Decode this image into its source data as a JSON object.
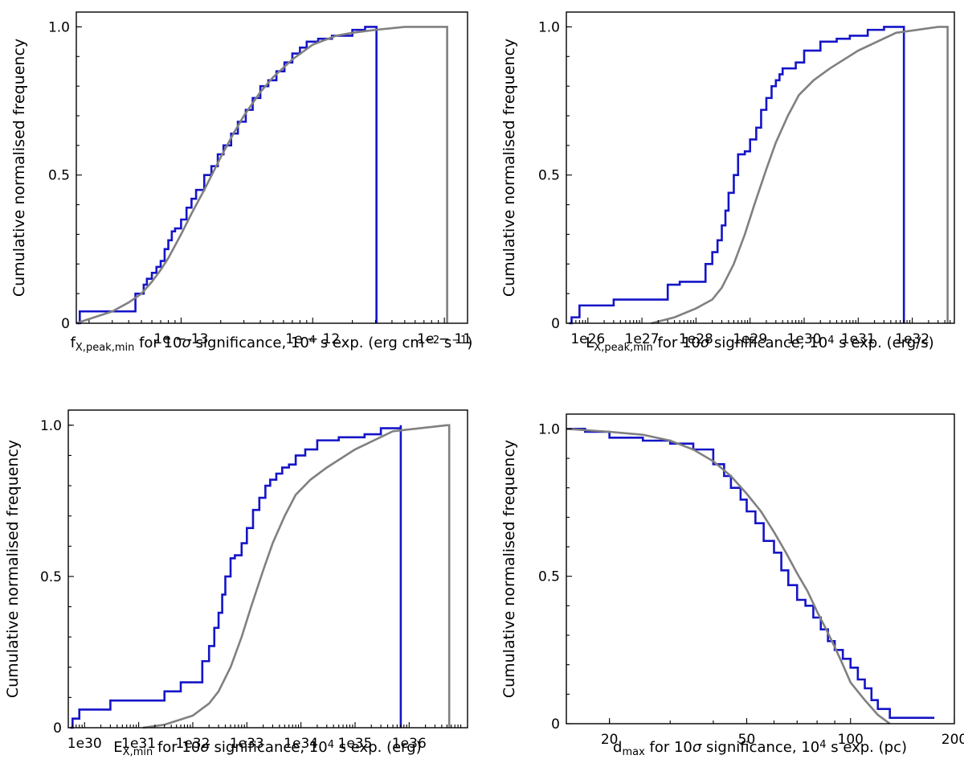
{
  "chart_data": [
    {
      "type": "line",
      "xscale": "log",
      "xlim": [
        1.6e-14,
        1.5e-11
      ],
      "ylim": [
        0,
        1.05
      ],
      "ylabel": "Cumulative normalised frequency",
      "xlabel": "f<sub>X,peak,min</sub> for 10<i>σ</i> significance, 10<sup>4</sup> s exp. (erg cm<sup>−2</sup> s<sup>−1</sup>)",
      "xticks": [
        {
          "v": 1e-13,
          "label": "1e − 13"
        },
        {
          "v": 1e-12,
          "label": "1e − 12"
        },
        {
          "v": 1e-11,
          "label": "1e − 11"
        }
      ],
      "yticks": [
        {
          "v": 0,
          "label": "0"
        },
        {
          "v": 0.5,
          "label": "0.5"
        },
        {
          "v": 1.0,
          "label": "1.0"
        }
      ],
      "series": [
        {
          "color": "#1414c8",
          "step": true,
          "x": [
            1.6e-14,
            1.7e-14,
            4.5e-14,
            5.2e-14,
            5.5e-14,
            6e-14,
            6.5e-14,
            7e-14,
            7.5e-14,
            8e-14,
            8.5e-14,
            9e-14,
            1e-13,
            1.1e-13,
            1.2e-13,
            1.3e-13,
            1.5e-13,
            1.7e-13,
            1.9e-13,
            2.1e-13,
            2.4e-13,
            2.7e-13,
            3.1e-13,
            3.5e-13,
            4e-13,
            4.6e-13,
            5.3e-13,
            6.1e-13,
            7e-13,
            8e-13,
            9e-13,
            1.1e-12,
            1.4e-12,
            2e-12,
            2.5e-12,
            3.05e-12,
            3.05e-12
          ],
          "y": [
            0,
            0.04,
            0.1,
            0.13,
            0.15,
            0.17,
            0.19,
            0.21,
            0.25,
            0.28,
            0.31,
            0.32,
            0.35,
            0.39,
            0.42,
            0.45,
            0.5,
            0.53,
            0.57,
            0.6,
            0.64,
            0.68,
            0.72,
            0.76,
            0.8,
            0.82,
            0.85,
            0.88,
            0.91,
            0.93,
            0.95,
            0.96,
            0.97,
            0.99,
            1.0,
            1.0,
            0
          ]
        },
        {
          "color": "#808080",
          "step": false,
          "x": [
            1.6e-14,
            3e-14,
            4e-14,
            5e-14,
            6e-14,
            7e-14,
            8e-14,
            1e-13,
            1.2e-13,
            1.5e-13,
            2e-13,
            2.5e-13,
            3e-13,
            4e-13,
            5e-13,
            7e-13,
            1e-12,
            1.5e-12,
            2e-12,
            3e-12,
            5e-12,
            1.05e-11,
            1.05e-11
          ],
          "y": [
            0,
            0.04,
            0.07,
            0.1,
            0.14,
            0.18,
            0.22,
            0.3,
            0.37,
            0.45,
            0.56,
            0.64,
            0.7,
            0.78,
            0.83,
            0.89,
            0.94,
            0.97,
            0.98,
            0.99,
            1.0,
            1.0,
            0
          ]
        }
      ]
    },
    {
      "type": "line",
      "xscale": "log",
      "xlim": [
        4e+25,
        6e+32
      ],
      "ylim": [
        0,
        1.05
      ],
      "ylabel": "Cumulative normalised frequency",
      "xlabel": "L<sub>X,peak,min</sub> for 10<i>σ</i> significance, 10<sup>4</sup> s exp. (erg/s)",
      "xticks": [
        {
          "v": 1e+26,
          "label": "1e26"
        },
        {
          "v": 1e+27,
          "label": "1e27"
        },
        {
          "v": 1e+28,
          "label": "1e28"
        },
        {
          "v": 1e+29,
          "label": "1e29"
        },
        {
          "v": 1e+30,
          "label": "1e30"
        },
        {
          "v": 1e+31,
          "label": "1e31"
        },
        {
          "v": 1e+32,
          "label": "1e32"
        }
      ],
      "yticks": [
        {
          "v": 0,
          "label": "0"
        },
        {
          "v": 0.5,
          "label": "0.5"
        },
        {
          "v": 1.0,
          "label": "1.0"
        }
      ],
      "series": [
        {
          "color": "#1414c8",
          "step": true,
          "x": [
            4.5e+25,
            5e+25,
            7e+25,
            3e+26,
            3e+27,
            5e+27,
            1.5e+28,
            2e+28,
            2.5e+28,
            3e+28,
            3.5e+28,
            4e+28,
            5e+28,
            6e+28,
            8e+28,
            1e+29,
            1.3e+29,
            1.6e+29,
            2e+29,
            2.5e+29,
            3e+29,
            3.5e+29,
            4e+29,
            5e+29,
            7e+29,
            1e+30,
            2e+30,
            4e+30,
            7e+30,
            1.5e+31,
            3e+31,
            7e+31,
            7e+31
          ],
          "y": [
            0,
            0.02,
            0.06,
            0.08,
            0.13,
            0.14,
            0.2,
            0.24,
            0.28,
            0.33,
            0.38,
            0.44,
            0.5,
            0.57,
            0.58,
            0.62,
            0.66,
            0.72,
            0.76,
            0.8,
            0.82,
            0.84,
            0.86,
            0.86,
            0.88,
            0.92,
            0.95,
            0.96,
            0.97,
            0.99,
            1.0,
            1.0,
            0
          ]
        },
        {
          "color": "#808080",
          "step": false,
          "x": [
            1.5e+27,
            4e+27,
            1e+28,
            2e+28,
            3e+28,
            5e+28,
            8e+28,
            1.2e+29,
            2e+29,
            3e+29,
            5e+29,
            8e+29,
            1.5e+30,
            3e+30,
            1e+31,
            5e+31,
            3e+32,
            4.5e+32,
            4.5e+32
          ],
          "y": [
            0,
            0.02,
            0.05,
            0.08,
            0.12,
            0.2,
            0.3,
            0.4,
            0.52,
            0.61,
            0.7,
            0.77,
            0.82,
            0.86,
            0.92,
            0.98,
            1.0,
            1.0,
            0
          ]
        }
      ]
    },
    {
      "type": "line",
      "xscale": "log",
      "xlim": [
        5e+29,
        1.2e+37
      ],
      "ylim": [
        0,
        1.05
      ],
      "ylabel": "Cumulative normalised frequency",
      "xlabel": "E<sub>X,min</sub> for 10<i>σ</i> significance, 10<sup>4</sup> s exp. (erg)",
      "xticks": [
        {
          "v": 1e+30,
          "label": "1e30"
        },
        {
          "v": 1e+31,
          "label": "1e31"
        },
        {
          "v": 1e+32,
          "label": "1e32"
        },
        {
          "v": 1e+33,
          "label": "1e33"
        },
        {
          "v": 1e+34,
          "label": "1e34"
        },
        {
          "v": 1e+35,
          "label": "1e35"
        },
        {
          "v": 1e+36,
          "label": "1e36"
        }
      ],
      "yticks": [
        {
          "v": 0,
          "label": "0"
        },
        {
          "v": 0.5,
          "label": "0.5"
        },
        {
          "v": 1.0,
          "label": "1.0"
        }
      ],
      "series": [
        {
          "color": "#1414c8",
          "step": true,
          "x": [
            5.5e+29,
            6e+29,
            8e+29,
            3e+30,
            3e+31,
            6e+31,
            1.5e+32,
            2e+32,
            2.5e+32,
            3e+32,
            3.5e+32,
            4e+32,
            5e+32,
            6e+32,
            8e+32,
            1e+33,
            1.3e+33,
            1.7e+33,
            2.2e+33,
            2.7e+33,
            3.5e+33,
            4.5e+33,
            6e+33,
            8e+33,
            1.2e+34,
            2e+34,
            5e+34,
            1.5e+35,
            3e+35,
            7e+35,
            7e+35
          ],
          "y": [
            0,
            0.03,
            0.06,
            0.09,
            0.12,
            0.15,
            0.22,
            0.27,
            0.33,
            0.38,
            0.44,
            0.5,
            0.56,
            0.57,
            0.61,
            0.66,
            0.72,
            0.76,
            0.8,
            0.82,
            0.84,
            0.86,
            0.87,
            0.9,
            0.92,
            0.95,
            0.96,
            0.97,
            0.99,
            1.0,
            0
          ]
        },
        {
          "color": "#808080",
          "step": false,
          "x": [
            1.2e+31,
            3e+31,
            1e+32,
            2e+32,
            3e+32,
            5e+32,
            8e+32,
            1.2e+33,
            2e+33,
            3e+33,
            5e+33,
            8e+33,
            1.5e+34,
            3e+34,
            1e+35,
            5e+35,
            5e+36,
            5.5e+36,
            5.5e+36
          ],
          "y": [
            0,
            0.01,
            0.04,
            0.08,
            0.12,
            0.2,
            0.3,
            0.4,
            0.52,
            0.61,
            0.7,
            0.77,
            0.82,
            0.86,
            0.92,
            0.98,
            1.0,
            1.0,
            0
          ]
        }
      ]
    },
    {
      "type": "line",
      "xscale": "log",
      "xlim": [
        15,
        200
      ],
      "ylim": [
        0,
        1.05
      ],
      "ylabel": "Cumulative normalised frequency",
      "xlabel": "d<sub>max</sub> for 10<i>σ</i> significance, 10<sup>4</sup> s exp. (pc)",
      "xticks": [
        {
          "v": 20,
          "label": "20"
        },
        {
          "v": 50,
          "label": "50"
        },
        {
          "v": 100,
          "label": "100"
        },
        {
          "v": 200,
          "label": "200"
        }
      ],
      "yticks": [
        {
          "v": 0,
          "label": "0"
        },
        {
          "v": 0.5,
          "label": "0.5"
        },
        {
          "v": 1.0,
          "label": "1.0"
        }
      ],
      "series": [
        {
          "color": "#1414c8",
          "step": true,
          "x": [
            15,
            17,
            20,
            25,
            30,
            35,
            40,
            43,
            45,
            48,
            50,
            53,
            56,
            60,
            63,
            66,
            70,
            74,
            78,
            82,
            86,
            90,
            95,
            100,
            105,
            110,
            115,
            120,
            130,
            175
          ],
          "y": [
            1.0,
            0.99,
            0.97,
            0.96,
            0.95,
            0.93,
            0.88,
            0.84,
            0.8,
            0.76,
            0.72,
            0.68,
            0.62,
            0.58,
            0.52,
            0.47,
            0.42,
            0.4,
            0.36,
            0.32,
            0.28,
            0.25,
            0.22,
            0.19,
            0.15,
            0.12,
            0.08,
            0.05,
            0.02,
            0.02
          ]
        },
        {
          "color": "#808080",
          "step": false,
          "x": [
            15,
            20,
            25,
            30,
            35,
            40,
            45,
            50,
            55,
            60,
            65,
            70,
            75,
            80,
            85,
            90,
            95,
            100,
            110,
            120,
            130
          ],
          "y": [
            1.0,
            0.99,
            0.98,
            0.96,
            0.93,
            0.89,
            0.84,
            0.78,
            0.72,
            0.65,
            0.58,
            0.51,
            0.45,
            0.38,
            0.32,
            0.26,
            0.2,
            0.14,
            0.08,
            0.03,
            0.0
          ]
        }
      ]
    }
  ]
}
